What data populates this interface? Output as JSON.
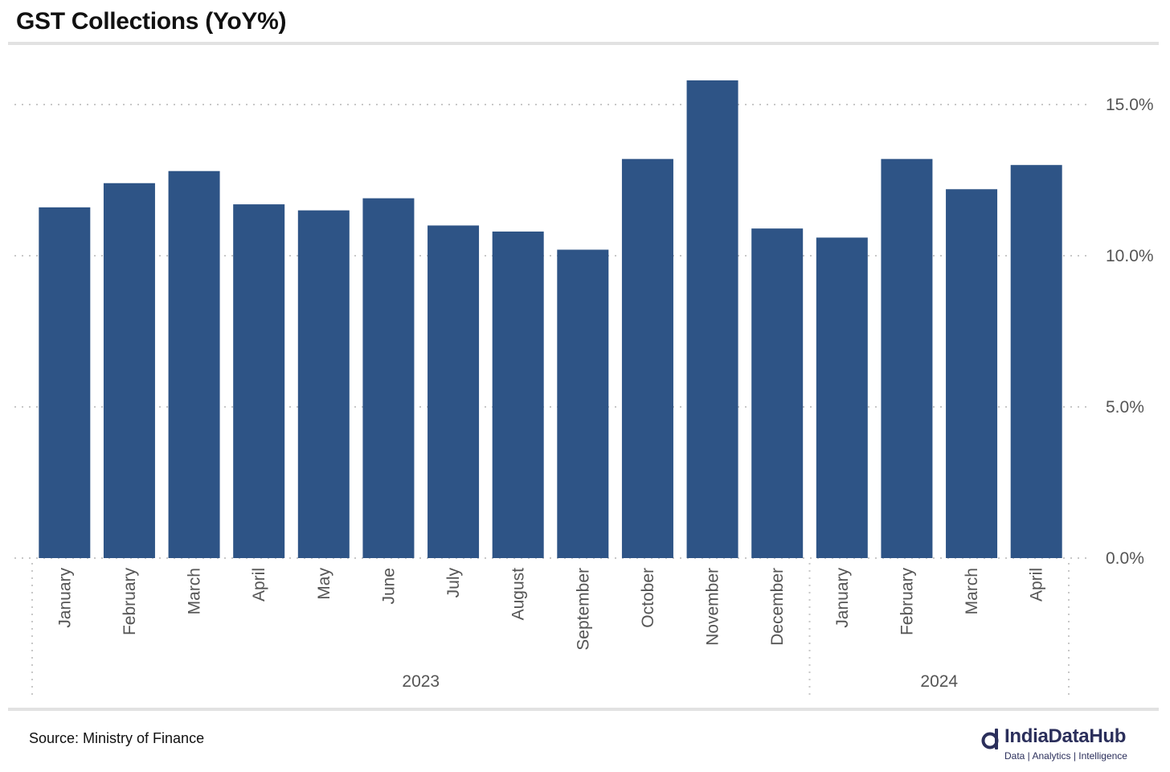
{
  "title": "GST Collections (YoY%)",
  "source": "Source: Ministry of Finance",
  "brand": {
    "name": "IndiaDataHub",
    "tagline": "Data | Analytics | Intelligence"
  },
  "colors": {
    "bar": "#2e5486",
    "grid": "#c8c8c8",
    "axis_text": "#555555",
    "brand": "#2b2f5b"
  },
  "chart_data": {
    "type": "bar",
    "title": "GST Collections (YoY%)",
    "categories": [
      "January",
      "February",
      "March",
      "April",
      "May",
      "June",
      "July",
      "August",
      "September",
      "October",
      "November",
      "December",
      "January",
      "February",
      "March",
      "April"
    ],
    "groups": [
      {
        "label": "2023",
        "count": 12
      },
      {
        "label": "2024",
        "count": 4
      }
    ],
    "values": [
      11.6,
      12.4,
      12.8,
      11.7,
      11.5,
      11.9,
      11.0,
      10.8,
      10.2,
      13.2,
      15.8,
      10.9,
      10.6,
      13.2,
      12.2,
      13.0
    ],
    "y_ticks": [
      "0.0%",
      "5.0%",
      "10.0%",
      "15.0%"
    ],
    "y_tick_values": [
      0,
      5,
      10,
      15
    ],
    "ylim": [
      0,
      17.2
    ],
    "y_axis_position": "right",
    "grid": true,
    "legend": "none"
  }
}
